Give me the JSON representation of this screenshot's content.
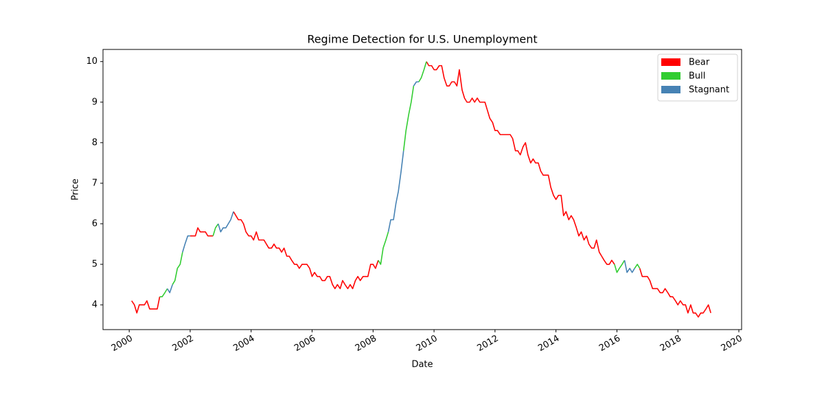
{
  "chart_data": {
    "type": "line",
    "title": "Regime Detection for U.S. Unemployment",
    "x_label": "Date",
    "y_label": "Price",
    "xlim": [
      1999.14,
      2020.09
    ],
    "ylim": [
      3.39,
      10.3
    ],
    "xticks": [
      2000,
      2002,
      2004,
      2006,
      2008,
      2010,
      2012,
      2014,
      2016,
      2018,
      2020
    ],
    "yticks": [
      4,
      5,
      6,
      7,
      8,
      9,
      10
    ],
    "grid": false,
    "legend_loc": "upper right",
    "series": [
      {
        "name": "Bear",
        "color": "#ff0000",
        "x": [
          2000.08,
          2000.17,
          2000.25,
          2000.33,
          2000.42,
          2000.5,
          2000.58,
          2000.67,
          2000.75,
          2000.83,
          2000.92,
          2001,
          null,
          2002,
          2002.08,
          2002.17,
          2002.25,
          2002.33,
          2002.42,
          2002.5,
          2002.58,
          2002.67,
          2002.75,
          null,
          2003.42,
          2003.5,
          2003.58,
          2003.67,
          2003.75,
          2003.83,
          2003.92,
          2004,
          2004.08,
          2004.17,
          2004.25,
          2004.33,
          2004.42,
          2004.5,
          2004.58,
          2004.67,
          2004.75,
          2004.83,
          2004.92,
          2005,
          2005.08,
          2005.17,
          2005.25,
          2005.33,
          2005.42,
          2005.5,
          2005.58,
          2005.67,
          2005.75,
          2005.83,
          2005.92,
          2006,
          2006.08,
          2006.17,
          2006.25,
          2006.33,
          2006.42,
          2006.5,
          2006.58,
          2006.67,
          2006.75,
          2006.83,
          2006.92,
          2007,
          2007.08,
          2007.17,
          2007.25,
          2007.33,
          2007.42,
          2007.5,
          2007.58,
          2007.67,
          2007.75,
          2007.83,
          2007.92,
          2008,
          2008.08,
          2008.17,
          null,
          2009.75,
          2009.83,
          2009.92,
          2010,
          2010.08,
          2010.17,
          2010.25,
          2010.33,
          2010.42,
          2010.5,
          2010.58,
          2010.67,
          2010.75,
          2010.83,
          2010.92,
          2011,
          2011.08,
          2011.17,
          2011.25,
          2011.33,
          2011.42,
          2011.5,
          2011.58,
          2011.67,
          2011.75,
          2011.83,
          2011.92,
          2012,
          2012.08,
          2012.17,
          2012.25,
          2012.33,
          2012.42,
          2012.5,
          2012.58,
          2012.67,
          2012.75,
          2012.83,
          2012.92,
          2013,
          2013.08,
          2013.17,
          2013.25,
          2013.33,
          2013.42,
          2013.5,
          2013.58,
          2013.67,
          2013.75,
          2013.83,
          2013.92,
          2014,
          2014.08,
          2014.17,
          2014.25,
          2014.33,
          2014.42,
          2014.5,
          2014.58,
          2014.67,
          2014.75,
          2014.83,
          2014.92,
          2015,
          2015.08,
          2015.17,
          2015.25,
          2015.33,
          2015.42,
          2015.5,
          2015.58,
          2015.67,
          2015.75,
          2015.83,
          2015.92,
          null,
          2016.75,
          2016.83,
          2016.92,
          2017,
          2017.08,
          2017.17,
          2017.25,
          2017.33,
          2017.42,
          2017.5,
          2017.58,
          2017.67,
          2017.75,
          2017.83,
          2017.92,
          2018,
          2018.08,
          2018.17,
          2018.25,
          2018.33,
          2018.42,
          2018.5,
          2018.58,
          2018.67,
          2018.75,
          2018.83,
          2018.92,
          2019,
          2019.08
        ],
        "values": [
          4.1,
          4.0,
          3.8,
          4.0,
          4.0,
          4.0,
          4.1,
          3.9,
          3.9,
          3.9,
          3.9,
          4.2,
          null,
          5.7,
          5.7,
          5.7,
          5.9,
          5.8,
          5.8,
          5.8,
          5.7,
          5.7,
          5.7,
          null,
          6.3,
          6.2,
          6.1,
          6.1,
          6.0,
          5.8,
          5.7,
          5.7,
          5.6,
          5.8,
          5.6,
          5.6,
          5.6,
          5.5,
          5.4,
          5.4,
          5.5,
          5.4,
          5.4,
          5.3,
          5.4,
          5.2,
          5.2,
          5.1,
          5.0,
          5.0,
          4.9,
          5.0,
          5.0,
          5.0,
          4.9,
          4.7,
          4.8,
          4.7,
          4.7,
          4.6,
          4.6,
          4.7,
          4.7,
          4.5,
          4.4,
          4.5,
          4.4,
          4.6,
          4.5,
          4.4,
          4.5,
          4.4,
          4.6,
          4.7,
          4.6,
          4.7,
          4.7,
          4.7,
          5.0,
          5.0,
          4.9,
          5.1,
          null,
          10.0,
          9.9,
          9.9,
          9.8,
          9.8,
          9.9,
          9.9,
          9.6,
          9.4,
          9.4,
          9.5,
          9.5,
          9.4,
          9.8,
          9.3,
          9.1,
          9.0,
          9.0,
          9.1,
          9.0,
          9.1,
          9.0,
          9.0,
          9.0,
          8.8,
          8.6,
          8.5,
          8.3,
          8.3,
          8.2,
          8.2,
          8.2,
          8.2,
          8.2,
          8.1,
          7.8,
          7.8,
          7.7,
          7.9,
          8.0,
          7.7,
          7.5,
          7.6,
          7.5,
          7.5,
          7.3,
          7.2,
          7.2,
          7.2,
          6.9,
          6.7,
          6.6,
          6.7,
          6.7,
          6.2,
          6.3,
          6.1,
          6.2,
          6.1,
          5.9,
          5.7,
          5.8,
          5.6,
          5.7,
          5.5,
          5.4,
          5.4,
          5.6,
          5.3,
          5.2,
          5.1,
          5.0,
          5.0,
          5.1,
          5.0,
          null,
          4.9,
          4.7,
          4.7,
          4.7,
          4.6,
          4.4,
          4.4,
          4.4,
          4.3,
          4.3,
          4.4,
          4.3,
          4.2,
          4.2,
          4.1,
          4.0,
          4.1,
          4.0,
          4.0,
          3.8,
          4.0,
          3.8,
          3.8,
          3.7,
          3.8,
          3.8,
          3.9,
          4.0,
          3.8
        ]
      },
      {
        "name": "Bull",
        "color": "#32cd32",
        "x": [
          2001,
          2001.08,
          2001.17,
          2001.25,
          null,
          2001.42,
          2001.5,
          2001.58,
          2001.67,
          2001.75,
          null,
          2002.75,
          2002.83,
          2002.92,
          null,
          2008.17,
          2008.25,
          2008.33,
          2008.42,
          2008.5,
          null,
          2009,
          2009.08,
          2009.17,
          2009.25,
          2009.33,
          null,
          2009.5,
          2009.58,
          2009.67,
          2009.75,
          null,
          2015.92,
          2016,
          2016.08,
          2016.17,
          2016.25,
          null,
          2016.58,
          2016.67,
          2016.75
        ],
        "values": [
          4.2,
          4.2,
          4.3,
          4.4,
          null,
          4.5,
          4.6,
          4.9,
          5.0,
          5.3,
          null,
          5.7,
          5.9,
          6.0,
          null,
          5.1,
          5.0,
          5.4,
          5.6,
          5.8,
          null,
          7.8,
          8.3,
          8.7,
          9.0,
          9.4,
          null,
          9.5,
          9.6,
          9.8,
          10.0,
          null,
          5.0,
          4.8,
          4.9,
          5.0,
          5.1,
          null,
          4.9,
          5.0,
          4.9
        ]
      },
      {
        "name": "Stagnant",
        "color": "#4682b4",
        "x": [
          2001.25,
          2001.33,
          2001.42,
          null,
          2001.75,
          2001.83,
          2001.92,
          2002,
          null,
          2002.92,
          2003,
          2003.08,
          2003.17,
          2003.25,
          2003.33,
          2003.42,
          null,
          2008.5,
          2008.58,
          2008.67,
          2008.75,
          2008.83,
          2008.92,
          2009,
          null,
          2009.33,
          2009.42,
          2009.5,
          null,
          2016.25,
          2016.33,
          2016.42,
          2016.5,
          2016.58
        ],
        "values": [
          4.4,
          4.3,
          4.5,
          null,
          5.3,
          5.5,
          5.7,
          5.7,
          null,
          6.0,
          5.8,
          5.9,
          5.9,
          6.0,
          6.1,
          6.3,
          null,
          5.8,
          6.1,
          6.1,
          6.5,
          6.8,
          7.3,
          7.8,
          null,
          9.4,
          9.5,
          9.5,
          null,
          5.1,
          4.8,
          4.9,
          4.8,
          4.9
        ]
      }
    ]
  }
}
